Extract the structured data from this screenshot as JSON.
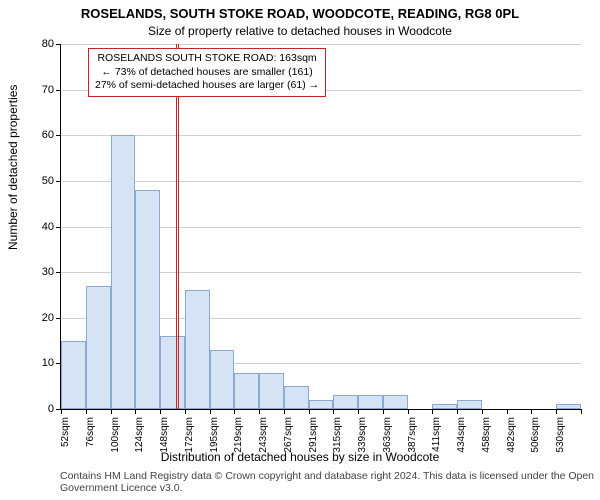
{
  "title": "ROSELANDS, SOUTH STOKE ROAD, WOODCOTE, READING, RG8 0PL",
  "subtitle": "Size of property relative to detached houses in Woodcote",
  "ylabel": "Number of detached properties",
  "xlabel": "Distribution of detached houses by size in Woodcote",
  "attribution": "Contains HM Land Registry data © Crown copyright and database right 2024. This data is licensed under the Open Government Licence v3.0.",
  "chart": {
    "type": "histogram",
    "ylim": [
      0,
      80
    ],
    "yticks": [
      0,
      10,
      20,
      30,
      40,
      50,
      60,
      70,
      80
    ],
    "xticks": [
      "52sqm",
      "76sqm",
      "100sqm",
      "124sqm",
      "148sqm",
      "172sqm",
      "195sqm",
      "219sqm",
      "243sqm",
      "267sqm",
      "291sqm",
      "315sqm",
      "339sqm",
      "363sqm",
      "387sqm",
      "411sqm",
      "434sqm",
      "458sqm",
      "482sqm",
      "506sqm",
      "530sqm"
    ],
    "bar_values": [
      15,
      27,
      60,
      48,
      16,
      26,
      13,
      8,
      8,
      5,
      2,
      3,
      3,
      3,
      0,
      1,
      2,
      0,
      0,
      0,
      1
    ],
    "bar_fill": "#d5e3f5",
    "bar_border": "#8aa8d0",
    "grid_color": "#d0d0d0",
    "background_color": "#ffffff",
    "axis_color": "#000000",
    "reference_value": "163sqm",
    "reference_color": "#cc2222",
    "reference_index_approx": 4.65
  },
  "annotation": {
    "line1": "ROSELANDS SOUTH STOKE ROAD: 163sqm",
    "line2": "← 73% of detached houses are smaller (161)",
    "line3": "27% of semi-detached houses are larger (61) →"
  }
}
